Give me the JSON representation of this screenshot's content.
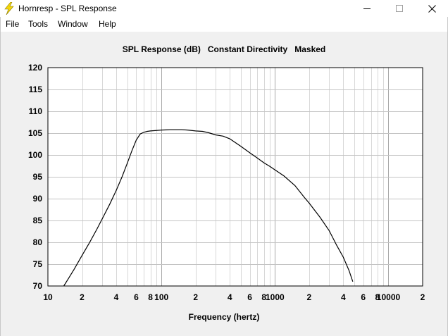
{
  "window": {
    "title": "Hornresp - SPL Response",
    "app_icon": "lightning-bolt-icon",
    "buttons": [
      "minimize-icon",
      "maximize-icon",
      "close-icon"
    ]
  },
  "menu": {
    "items": [
      {
        "id": "file",
        "label": "File"
      },
      {
        "id": "tools",
        "label": "Tools"
      },
      {
        "id": "window",
        "label": "Window"
      },
      {
        "id": "help",
        "label": "Help"
      }
    ]
  },
  "chart_data": {
    "type": "line",
    "title": "SPL Response (dB)   Constant Directivity   Masked",
    "xlabel": "Frequency (hertz)",
    "ylabel": "",
    "x_scale": "log",
    "xlim": [
      10,
      20000
    ],
    "ylim": [
      70,
      120
    ],
    "grid": true,
    "x_ticks": [
      {
        "value": 10,
        "label": "10"
      },
      {
        "value": 20,
        "label": "2"
      },
      {
        "value": 40,
        "label": "4"
      },
      {
        "value": 60,
        "label": "6"
      },
      {
        "value": 80,
        "label": "8"
      },
      {
        "value": 100,
        "label": "100"
      },
      {
        "value": 200,
        "label": "2"
      },
      {
        "value": 400,
        "label": "4"
      },
      {
        "value": 600,
        "label": "6"
      },
      {
        "value": 800,
        "label": "8"
      },
      {
        "value": 1000,
        "label": "1000"
      },
      {
        "value": 2000,
        "label": "2"
      },
      {
        "value": 4000,
        "label": "4"
      },
      {
        "value": 6000,
        "label": "6"
      },
      {
        "value": 8000,
        "label": "8"
      },
      {
        "value": 10000,
        "label": "10000"
      },
      {
        "value": 20000,
        "label": "2"
      }
    ],
    "y_ticks": [
      70,
      75,
      80,
      85,
      90,
      95,
      100,
      105,
      110,
      115,
      120
    ],
    "series": [
      {
        "line_color": "#000000",
        "x": [
          13.8,
          15,
          17,
          20,
          23,
          27,
          30,
          35,
          40,
          45,
          50,
          55,
          60,
          65,
          70,
          75,
          80,
          90,
          100,
          110,
          120,
          130,
          140,
          150,
          170,
          200,
          230,
          260,
          300,
          350,
          400,
          450,
          500,
          600,
          700,
          800,
          900,
          1000,
          1200,
          1500,
          1800,
          2000,
          2500,
          3000,
          3500,
          4000,
          4500,
          4850
        ],
        "y": [
          70,
          71.5,
          73.8,
          77,
          79.7,
          83,
          85.3,
          88.7,
          91.9,
          95,
          98.1,
          101,
          103.4,
          104.8,
          105.2,
          105.4,
          105.5,
          105.6,
          105.7,
          105.75,
          105.8,
          105.8,
          105.8,
          105.8,
          105.7,
          105.5,
          105.4,
          105.1,
          104.6,
          104.3,
          103.7,
          102.8,
          102,
          100.5,
          99.3,
          98.2,
          97.4,
          96.6,
          95.2,
          93,
          90.4,
          89,
          85.7,
          82.7,
          79.3,
          76.6,
          73.5,
          71
        ]
      }
    ]
  }
}
